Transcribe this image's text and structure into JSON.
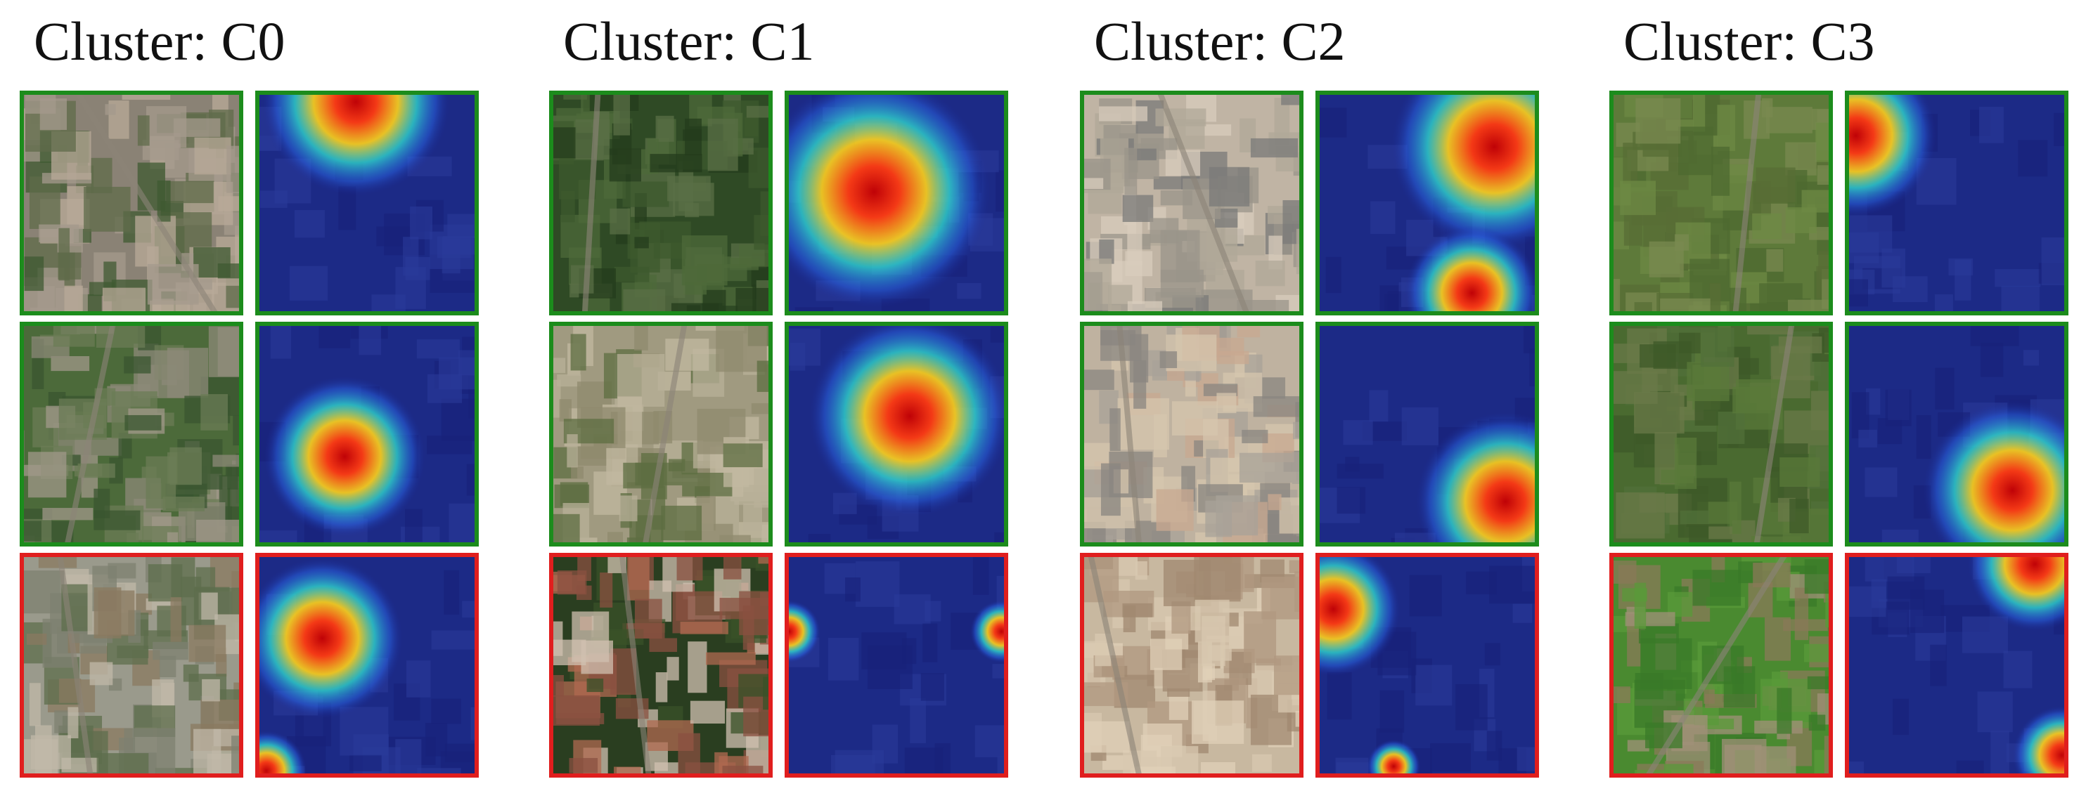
{
  "clusters": [
    {
      "title": "Cluster: C0",
      "rows": [
        {
          "border_color": "#1c8c1c"
        },
        {
          "border_color": "#1c8c1c"
        },
        {
          "border_color": "#e01e1e"
        }
      ]
    },
    {
      "title": "Cluster: C1",
      "rows": [
        {
          "border_color": "#1c8c1c"
        },
        {
          "border_color": "#1c8c1c"
        },
        {
          "border_color": "#e01e1e"
        }
      ]
    },
    {
      "title": "Cluster: C2",
      "rows": [
        {
          "border_color": "#1c8c1c"
        },
        {
          "border_color": "#1c8c1c"
        },
        {
          "border_color": "#e01e1e"
        }
      ]
    },
    {
      "title": "Cluster: C3",
      "rows": [
        {
          "border_color": "#1c8c1c"
        },
        {
          "border_color": "#1c8c1c"
        },
        {
          "border_color": "#e01e1e"
        }
      ]
    }
  ]
}
